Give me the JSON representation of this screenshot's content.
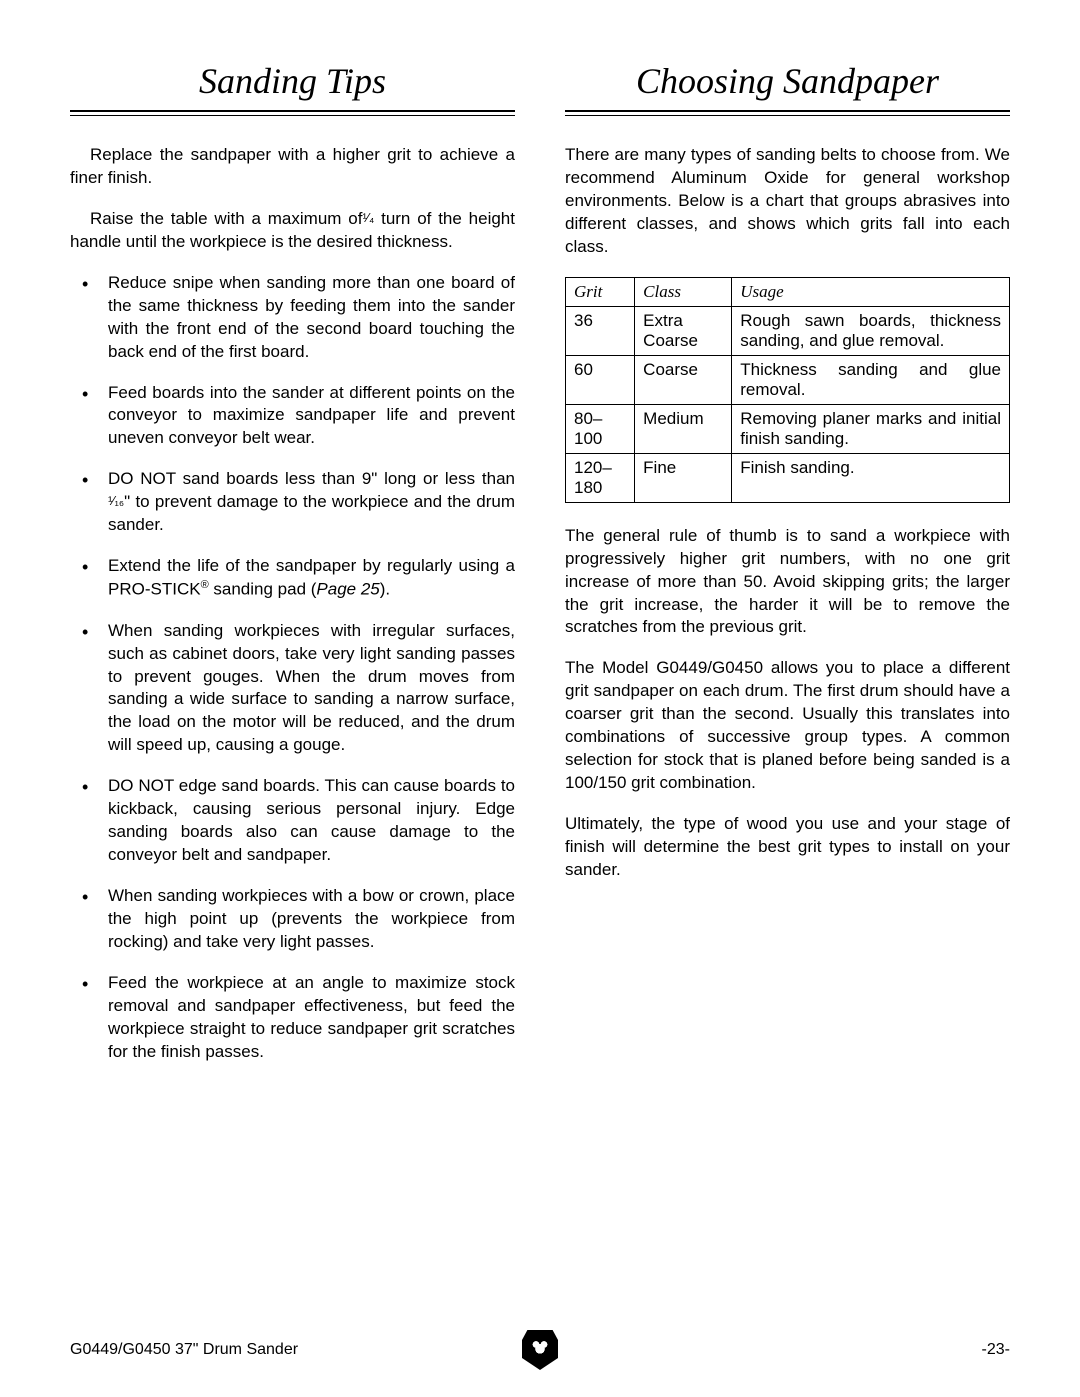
{
  "left": {
    "title": "Sanding Tips",
    "intro1_a": "Replace the sandpaper with a higher grit to achieve a finer finish.",
    "intro2_a": "Raise the table with a maximum of",
    "intro2_frac": "¹⁄₄",
    "intro2_b": " turn of the height handle until the workpiece is the desired thickness.",
    "bullets": [
      "Reduce snipe when sanding more than one board of the same thickness by feeding them into the sander with the front end of the second board touching the back end of the first board.",
      "Feed boards into the sander at different points on the conveyor to maximize sandpaper life and prevent uneven conveyor belt wear.",
      "",
      "",
      "When sanding workpieces with irregular surfaces, such as cabinet doors, take very light sanding passes to prevent gouges. When the drum moves from sanding a wide surface to sanding a narrow surface, the load on the motor will be reduced, and the drum will speed up, causing a gouge.",
      "DO NOT edge sand boards. This can cause boards to kickback, causing serious personal injury. Edge sanding boards also can cause damage to the conveyor belt and sandpaper.",
      "When sanding workpieces with a bow or crown, place the high point up (prevents the workpiece from rocking) and take very light passes.",
      "Feed the workpiece at an angle to maximize stock removal and sandpaper effectiveness, but feed the workpiece straight to reduce sandpaper grit scratches for the finish passes."
    ],
    "bullet3_a": "DO NOT sand boards less than 9\" long or less than ",
    "bullet3_frac": "¹⁄₁₆",
    "bullet3_b": "\" to prevent damage to the workpiece and the drum sander.",
    "bullet4_a": "Extend the life of the sandpaper by regularly using a PRO-STICK",
    "bullet4_sup": "®",
    "bullet4_b": " sanding pad (",
    "bullet4_page": "Page 25",
    "bullet4_c": ")."
  },
  "right": {
    "title": "Choosing Sandpaper",
    "intro": "There are many types of sanding belts to choose from. We recommend Aluminum Oxide for general workshop environments. Below is a chart that groups abrasives into different classes, and shows which grits fall into each class.",
    "table": {
      "headers": [
        "Grit",
        "Class",
        "Usage"
      ],
      "rows": [
        [
          "36",
          "Extra Coarse",
          "Rough sawn boards, thickness sanding, and glue removal."
        ],
        [
          "60",
          "Coarse",
          "Thickness sanding and glue removal."
        ],
        [
          "80–100",
          "Medium",
          "Removing planer marks and initial finish sanding."
        ],
        [
          "120–180",
          "Fine",
          "Finish sanding."
        ]
      ]
    },
    "p1": "The general rule of thumb is to sand a workpiece with progressively higher grit numbers, with no one grit increase of more than 50. Avoid skipping grits; the larger the grit increase, the harder it will be to remove the scratches from the previous grit.",
    "p2": "The Model G0449/G0450 allows you to place a different grit sandpaper on each drum. The first drum should have a coarser grit than the second. Usually this translates into combinations of successive group types. A common selection for stock that is planed before being sanded is a 100/150 grit combination.",
    "p3": "Ultimately, the type of wood you use and your stage of finish will determine the best grit types to install on your sander."
  },
  "footer": {
    "left": "G0449/G0450 37\" Drum Sander",
    "right": "-23-"
  }
}
